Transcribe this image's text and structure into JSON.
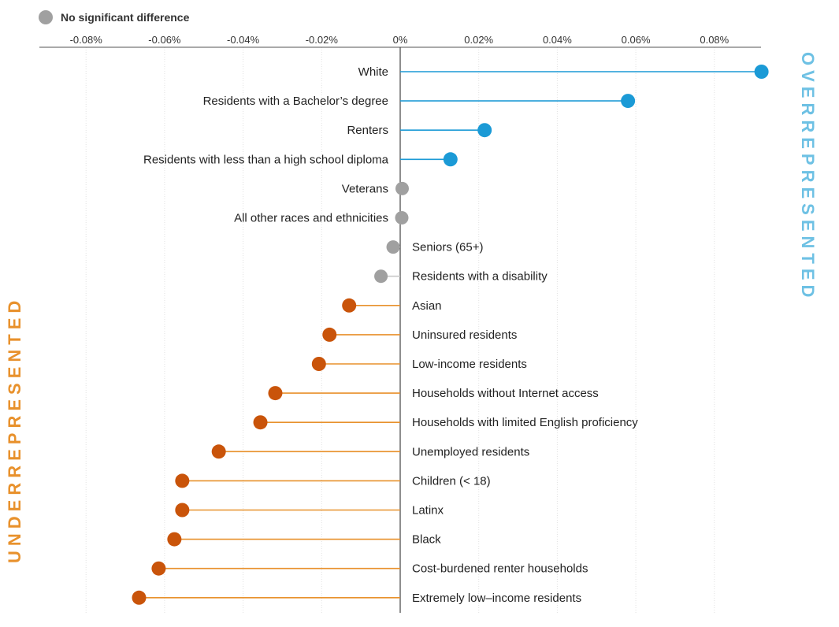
{
  "legend": {
    "label": "No significant difference",
    "color": "#a0a0a0"
  },
  "side_labels": {
    "over": {
      "text": "OVERREPRESENTED",
      "color": "#6ec1e4"
    },
    "under": {
      "text": "UNDERREPRESENTED",
      "color": "#e8912c"
    }
  },
  "colors": {
    "over": "#1b9ad6",
    "under": "#c9540a",
    "under_line": "#e8912c",
    "neutral": "#a0a0a0"
  },
  "chart_data": {
    "type": "lollipop",
    "xlim": [
      -0.092,
      0.092
    ],
    "xticks": [
      {
        "value": -0.08,
        "label": "-0.08%"
      },
      {
        "value": -0.06,
        "label": "-0.06%"
      },
      {
        "value": -0.04,
        "label": "-0.04%"
      },
      {
        "value": -0.02,
        "label": "-0.02%"
      },
      {
        "value": 0,
        "label": "0%"
      },
      {
        "value": 0.02,
        "label": "0.02%"
      },
      {
        "value": 0.04,
        "label": "0.04%"
      },
      {
        "value": 0.06,
        "label": "0.06%"
      },
      {
        "value": 0.08,
        "label": "0.08%"
      }
    ],
    "points": [
      {
        "label": "White",
        "value": 0.092,
        "group": "over"
      },
      {
        "label": "Residents with a Bachelor’s degree",
        "value": 0.058,
        "group": "over"
      },
      {
        "label": "Renters",
        "value": 0.0215,
        "group": "over"
      },
      {
        "label": "Residents with less than a high school diploma",
        "value": 0.0128,
        "group": "over"
      },
      {
        "label": "Veterans",
        "value": 0.0005,
        "group": "neutral"
      },
      {
        "label": "All other races and ethnicities",
        "value": 0.0004,
        "group": "neutral"
      },
      {
        "label": "Seniors (65+)",
        "value": -0.0018,
        "group": "neutral"
      },
      {
        "label": "Residents with a disability",
        "value": -0.0049,
        "group": "neutral"
      },
      {
        "label": "Asian",
        "value": -0.013,
        "group": "under"
      },
      {
        "label": "Uninsured residents",
        "value": -0.018,
        "group": "under"
      },
      {
        "label": "Low-income residents",
        "value": -0.0207,
        "group": "under"
      },
      {
        "label": "Households without Internet access",
        "value": -0.0318,
        "group": "under"
      },
      {
        "label": "Households with limited English proficiency",
        "value": -0.0356,
        "group": "under"
      },
      {
        "label": "Unemployed residents",
        "value": -0.0462,
        "group": "under"
      },
      {
        "label": "Children (< 18)",
        "value": -0.0555,
        "group": "under"
      },
      {
        "label": "Latinx",
        "value": -0.0555,
        "group": "under"
      },
      {
        "label": "Black",
        "value": -0.0575,
        "group": "under"
      },
      {
        "label": "Cost-burdened renter households",
        "value": -0.0615,
        "group": "under"
      },
      {
        "label": "Extremely low–income residents",
        "value": -0.0665,
        "group": "under"
      }
    ]
  }
}
